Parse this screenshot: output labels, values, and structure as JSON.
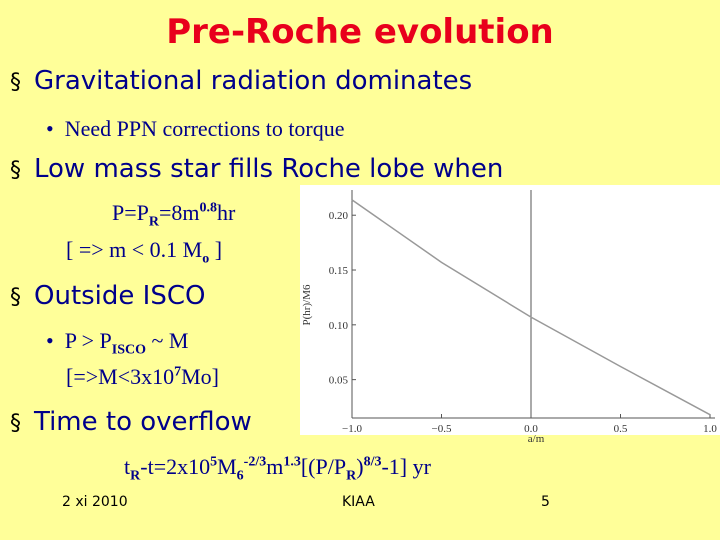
{
  "header": {
    "title": "Pre-Roche evolution"
  },
  "bullets": [
    {
      "text": "Gravitational radiation dominates",
      "subs": [
        [
          "Need PPN corrections to torque"
        ]
      ]
    },
    {
      "text": "Low mass star fills Roche lobe when",
      "subs": [
        [
          "P=P",
          "R",
          "=8m",
          "0.8",
          "hr"
        ],
        [
          "[ => m < 0.1 M",
          "o",
          " ]"
        ]
      ]
    },
    {
      "text": "Outside ISCO",
      "subs": [
        [
          "P > P",
          "ISCO",
          " ~ M"
        ],
        [
          "[=>M<3x10",
          "7",
          "Mo]"
        ]
      ]
    },
    {
      "text": "Time to overflow",
      "subs": [
        [
          "t",
          "R",
          "-t=2x10",
          "5",
          "M",
          "6",
          "-2/3",
          "m",
          "1.3",
          "[(P/P",
          "R",
          ")",
          "8/3",
          "-1] yr"
        ]
      ]
    }
  ],
  "chart": {
    "type": "line",
    "xlabel": "a/m",
    "ylabel": "P(hr)/M6",
    "x": [
      -1.0,
      -0.5,
      0.0,
      0.5,
      1.0
    ],
    "values": [
      0.214,
      0.157,
      0.107,
      0.062,
      0.018
    ],
    "color": "#999999",
    "xlim": [
      -1.0,
      1.0
    ],
    "ylim": [
      0.015,
      0.223
    ],
    "xticks": [
      {
        "value": -1.0,
        "label": "−1.0"
      },
      {
        "value": -0.5,
        "label": "−0.5"
      },
      {
        "value": 0.0,
        "label": "0.0"
      },
      {
        "value": 0.5,
        "label": "0.5"
      },
      {
        "value": 1.0,
        "label": "1.0"
      }
    ],
    "yticks": [
      {
        "value": 0.05,
        "label": "0.05"
      },
      {
        "value": 0.1,
        "label": "0.10"
      },
      {
        "value": 0.15,
        "label": "0.15"
      },
      {
        "value": 0.2,
        "label": "0.20"
      }
    ]
  },
  "footer": {
    "date": "2 xi 2010",
    "venue": "KIAA",
    "page": "5"
  }
}
